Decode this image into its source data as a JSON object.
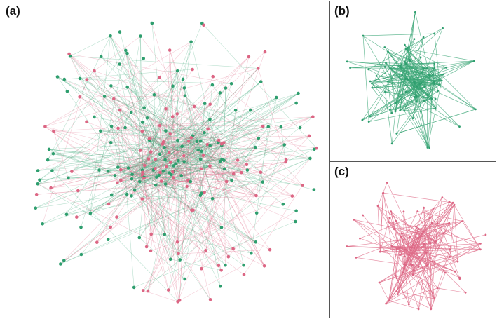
{
  "figure": {
    "panels": [
      {
        "id": "a",
        "label": "(a)",
        "content": "combined-network"
      },
      {
        "id": "b",
        "label": "(b)",
        "content": "green-subnetwork"
      },
      {
        "id": "c",
        "label": "(c)",
        "content": "pink-subnetwork"
      }
    ],
    "colors": {
      "green_node": "#2e9e6e",
      "pink_node": "#dc6684",
      "green_edge": "#3aa676",
      "pink_edge": "#df6d8a",
      "border": "#555555"
    }
  }
}
